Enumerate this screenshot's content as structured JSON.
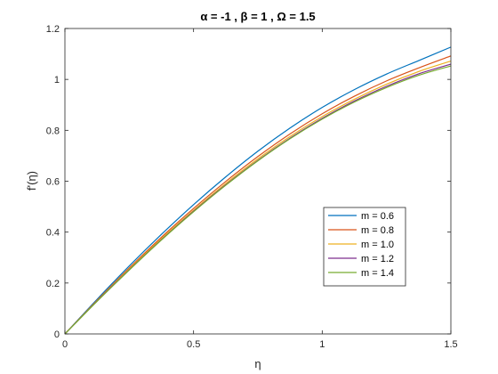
{
  "chart_data": {
    "type": "line",
    "title": "α = -1 ,  β = 1 , Ω = 1.5",
    "xlabel": "η",
    "ylabel": "f'(η)",
    "xlim": [
      0,
      1.5
    ],
    "ylim": [
      0,
      1.2
    ],
    "xticks": [
      0,
      0.5,
      1,
      1.5
    ],
    "xtick_labels": [
      "0",
      "0.5",
      "1",
      "1.5"
    ],
    "yticks": [
      0,
      0.2,
      0.4,
      0.6,
      0.8,
      1.0,
      1.2
    ],
    "ytick_labels": [
      "0",
      "0.2",
      "0.4",
      "0.6",
      "0.8",
      "1",
      "1.2"
    ],
    "grid": false,
    "legend_position": "right-lower",
    "x": [
      0,
      0.125,
      0.25,
      0.375,
      0.5,
      0.625,
      0.75,
      0.875,
      1.0,
      1.125,
      1.25,
      1.375,
      1.5
    ],
    "series": [
      {
        "name": "m = 0.6",
        "color": "#0072BD",
        "values": [
          0,
          0.136,
          0.267,
          0.391,
          0.508,
          0.617,
          0.718,
          0.809,
          0.89,
          0.96,
          1.021,
          1.074,
          1.127
        ]
      },
      {
        "name": "m = 0.8",
        "color": "#D95319",
        "values": [
          0,
          0.132,
          0.259,
          0.38,
          0.493,
          0.599,
          0.697,
          0.786,
          0.865,
          0.934,
          0.994,
          1.045,
          1.092
        ]
      },
      {
        "name": "m = 1.0",
        "color": "#EDB120",
        "values": [
          0,
          0.13,
          0.255,
          0.374,
          0.486,
          0.591,
          0.688,
          0.776,
          0.854,
          0.922,
          0.981,
          1.031,
          1.072
        ]
      },
      {
        "name": "m = 1.2",
        "color": "#7E2F8E",
        "values": [
          0,
          0.129,
          0.252,
          0.37,
          0.482,
          0.586,
          0.682,
          0.769,
          0.847,
          0.915,
          0.973,
          1.022,
          1.06
        ]
      },
      {
        "name": "m = 1.4",
        "color": "#77AC30",
        "values": [
          0,
          0.128,
          0.251,
          0.369,
          0.48,
          0.584,
          0.68,
          0.767,
          0.844,
          0.911,
          0.968,
          1.016,
          1.053
        ]
      }
    ]
  }
}
